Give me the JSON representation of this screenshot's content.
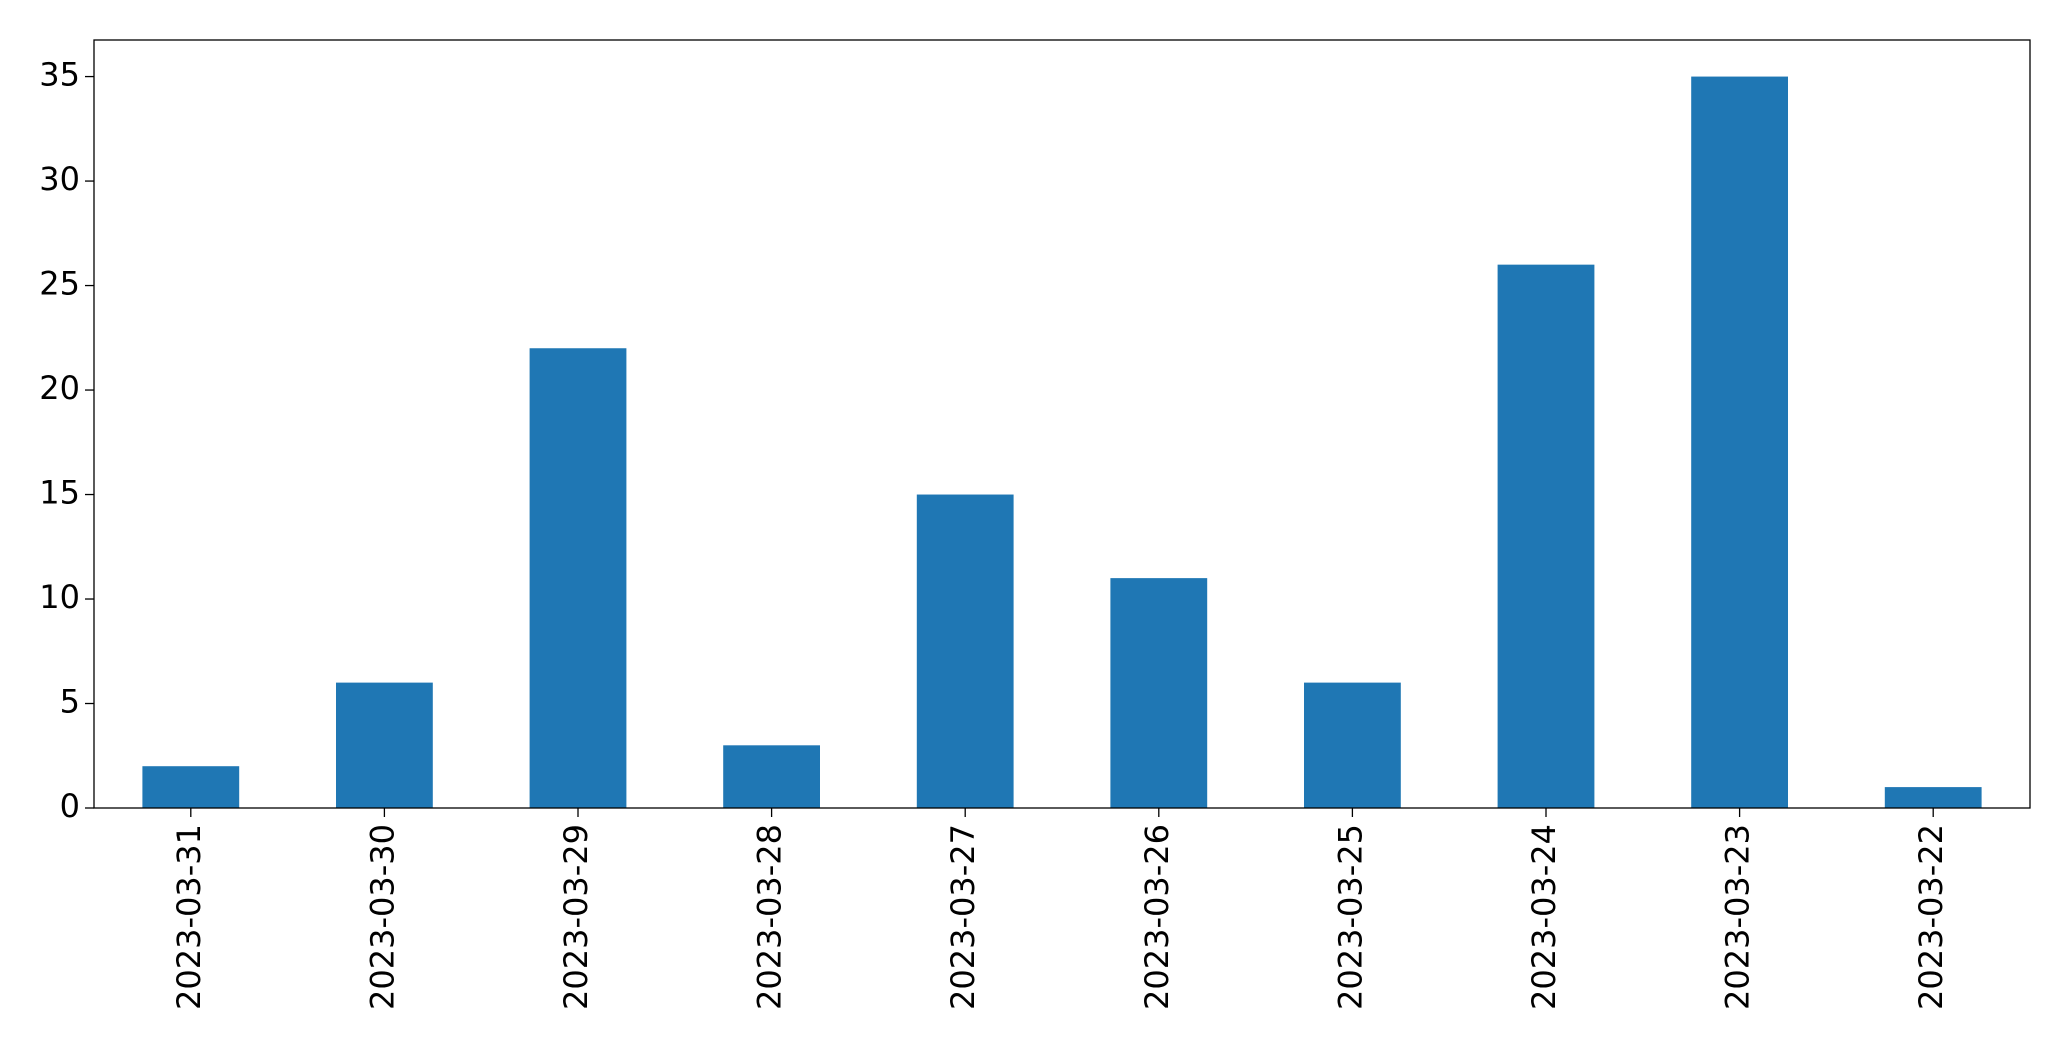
{
  "chart_data": {
    "type": "bar",
    "categories": [
      "2023-03-31",
      "2023-03-30",
      "2023-03-29",
      "2023-03-28",
      "2023-03-27",
      "2023-03-26",
      "2023-03-25",
      "2023-03-24",
      "2023-03-23",
      "2023-03-22"
    ],
    "values": [
      2,
      6,
      22,
      3,
      15,
      11,
      6,
      26,
      35,
      1
    ],
    "color": "#1f77b4",
    "ylim": [
      0,
      36.75
    ],
    "yticks": [
      0,
      5,
      10,
      15,
      20,
      25,
      30,
      35
    ],
    "grid": false
  }
}
